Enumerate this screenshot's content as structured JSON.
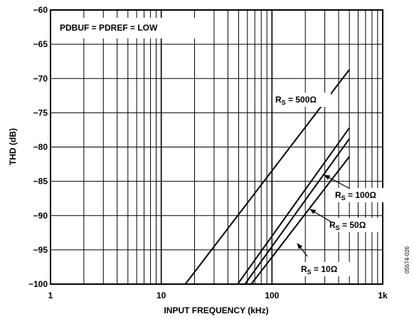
{
  "chart_data": {
    "type": "line",
    "xscale": "log",
    "xlim": [
      1,
      1000
    ],
    "ylim": [
      -100,
      -60
    ],
    "xlabel": "INPUT FREQUENCY (kHz)",
    "ylabel": "THD (dB)",
    "x_tick_labels": [
      "1",
      "10",
      "100",
      "1k"
    ],
    "y_tick_labels": [
      "−60",
      "−65",
      "−70",
      "−75",
      "−80",
      "−85",
      "−90",
      "−95",
      "−100"
    ],
    "grid": true,
    "condition": "PDBUF = PDREF = LOW",
    "figure_code": "05574-026",
    "series": [
      {
        "name": "500Ω",
        "x": [
          16.5,
          500
        ],
        "y": [
          -100,
          -68.7
        ]
      },
      {
        "name": "100Ω",
        "x": [
          49,
          500
        ],
        "y": [
          -100,
          -77.2
        ]
      },
      {
        "name": "50Ω",
        "x": [
          57,
          500
        ],
        "y": [
          -100,
          -78.8
        ]
      },
      {
        "name": "10Ω",
        "x": [
          65,
          500
        ],
        "y": [
          -100,
          -81.4
        ]
      }
    ],
    "annotations": [
      {
        "id": "500",
        "prefix": "R",
        "subscript": "S",
        "text": " = 500Ω"
      },
      {
        "id": "100",
        "prefix": "R",
        "subscript": "S",
        "text": " = 100Ω"
      },
      {
        "id": "50",
        "prefix": "R",
        "subscript": "S",
        "text": " = 50Ω"
      },
      {
        "id": "10",
        "prefix": "R",
        "subscript": "S",
        "text": " = 10Ω"
      }
    ]
  }
}
